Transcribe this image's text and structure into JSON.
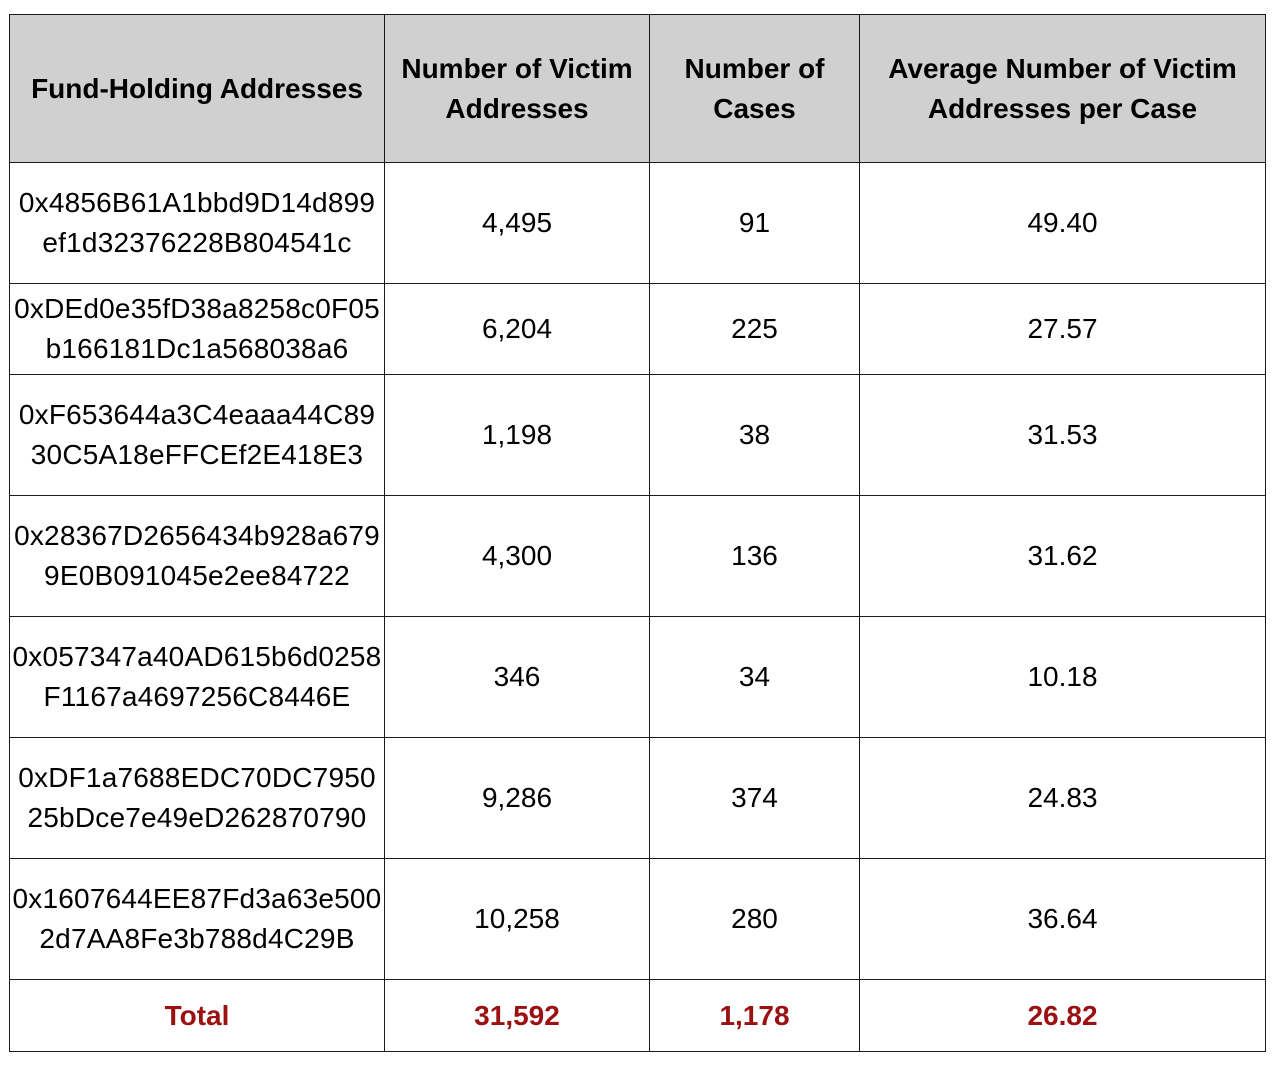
{
  "table": {
    "headers": [
      "Fund-Holding Addresses",
      "Number of Victim Addresses",
      "Number of Cases",
      "Average Number of Victim Addresses per Case"
    ],
    "rows": [
      {
        "address": "0x4856B61A1bbd9D14d899ef1d32376228B804541c",
        "victims": "4,495",
        "cases": "91",
        "average": "49.40"
      },
      {
        "address": "0xDEd0e35fD38a8258c0F05b166181Dc1a568038a6",
        "victims": "6,204",
        "cases": "225",
        "average": "27.57"
      },
      {
        "address": "0xF653644a3C4eaaa44C8930C5A18eFFCEf2E418E3",
        "victims": "1,198",
        "cases": "38",
        "average": "31.53"
      },
      {
        "address": "0x28367D2656434b928a6799E0B091045e2ee84722",
        "victims": "4,300",
        "cases": "136",
        "average": "31.62"
      },
      {
        "address": "0x057347a40AD615b6d0258F1167a4697256C8446E",
        "victims": "346",
        "cases": "34",
        "average": "10.18"
      },
      {
        "address": "0xDF1a7688EDC70DC795025bDce7e49eD262870790",
        "victims": "9,286",
        "cases": "374",
        "average": "24.83"
      },
      {
        "address": "0x1607644EE87Fd3a63e5002d7AA8Fe3b788d4C29B",
        "victims": "10,258",
        "cases": "280",
        "average": "36.64"
      }
    ],
    "total": {
      "label": "Total",
      "victims": "31,592",
      "cases": "1,178",
      "average": "26.82"
    },
    "colors": {
      "header_bg": "#d0d0d0",
      "total_text": "#9b1010",
      "border": "#1a1a1a"
    }
  }
}
